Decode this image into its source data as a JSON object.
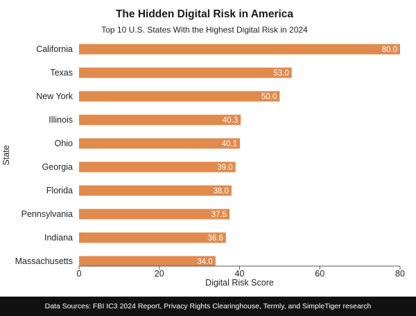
{
  "chart_data": {
    "type": "bar",
    "orientation": "horizontal",
    "title": "The Hidden Digital Risk in America",
    "subtitle": "Top 10 U.S. States With the Highest Digital Risk in 2024",
    "xlabel": "Digital Risk Score",
    "ylabel": "State",
    "xlim": [
      0,
      80
    ],
    "xticks": [
      "0",
      "20",
      "40",
      "60",
      "80"
    ],
    "categories": [
      "California",
      "Texas",
      "New York",
      "Illinois",
      "Ohio",
      "Georgia",
      "Florida",
      "Pennsylvania",
      "Indiana",
      "Massachusetts"
    ],
    "values": [
      80.0,
      53.0,
      50.0,
      40.3,
      40.1,
      39.0,
      38.0,
      37.5,
      36.6,
      34.0
    ],
    "value_labels": [
      "80.0",
      "53.0",
      "50.0",
      "40.3",
      "40.1",
      "39.0",
      "38.0",
      "37.5",
      "36.6",
      "34.0"
    ],
    "bar_color": "#E08A4C",
    "grid": false
  },
  "footer": {
    "text": "Data Sources: FBI IC3 2024 Report, Privacy Rights Clearinghouse, Termly, and SimpleTiger research"
  },
  "colors": {
    "bar": "#E08A4C",
    "footer_bg": "#111111",
    "footer_text": "#ffffff"
  }
}
